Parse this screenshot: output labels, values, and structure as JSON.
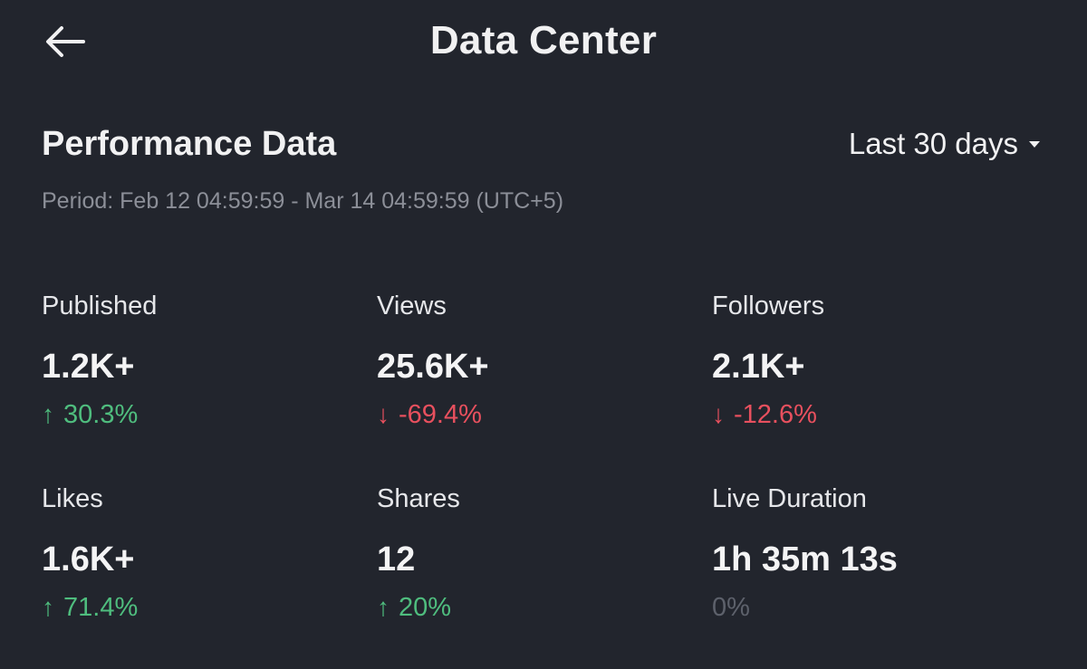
{
  "header": {
    "title": "Data Center",
    "back_icon": "arrow-left-icon"
  },
  "performance": {
    "title": "Performance Data",
    "range": "Last 30 days",
    "period": "Period: Feb 12 04:59:59 - Mar 14 04:59:59 (UTC+5)"
  },
  "metrics": [
    {
      "label": "Published",
      "value": "1.2K+",
      "arrow": "↑",
      "change": "30.3%",
      "trend": "up"
    },
    {
      "label": "Views",
      "value": "25.6K+",
      "arrow": "↓",
      "change": "-69.4%",
      "trend": "down"
    },
    {
      "label": "Followers",
      "value": "2.1K+",
      "arrow": "↓",
      "change": "-12.6%",
      "trend": "down"
    },
    {
      "label": "Likes",
      "value": "1.6K+",
      "arrow": "↑",
      "change": "71.4%",
      "trend": "up"
    },
    {
      "label": "Shares",
      "value": "12",
      "arrow": "↑",
      "change": "20%",
      "trend": "up"
    },
    {
      "label": "Live Duration",
      "value": "1h 35m 13s",
      "arrow": "",
      "change": "0%",
      "trend": "neutral"
    }
  ],
  "colors": {
    "background": "#22252d",
    "up": "#4fbd7e",
    "down": "#e8505e",
    "neutral": "#5d616b"
  }
}
